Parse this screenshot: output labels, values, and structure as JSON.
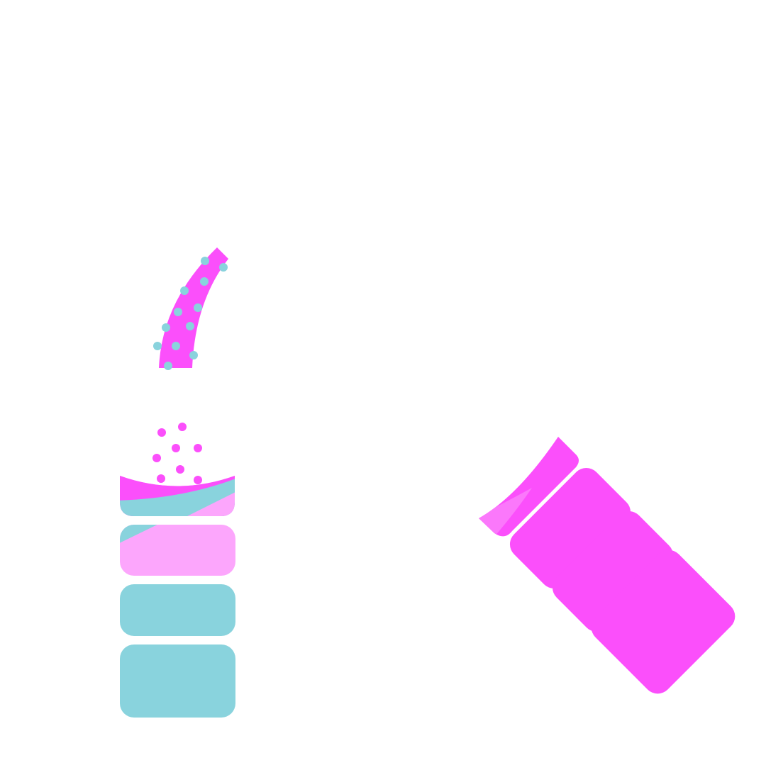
{
  "colors": {
    "background": "#ffffff",
    "magenta": "#fb4ffb",
    "light_pink": "#fca6fc",
    "medium_pink": "#fb78fb",
    "teal": "#89d3dd"
  },
  "graphics": {
    "dotted_arc": {
      "icon": "curved-dotted-tube-icon"
    },
    "scatter_dots": {
      "icon": "scattered-dots-icon"
    },
    "left_stack": {
      "icon": "vertical-block-stack-icon",
      "block_count": 4
    },
    "right_stack": {
      "icon": "diagonal-block-stack-icon",
      "block_count": 4
    }
  }
}
